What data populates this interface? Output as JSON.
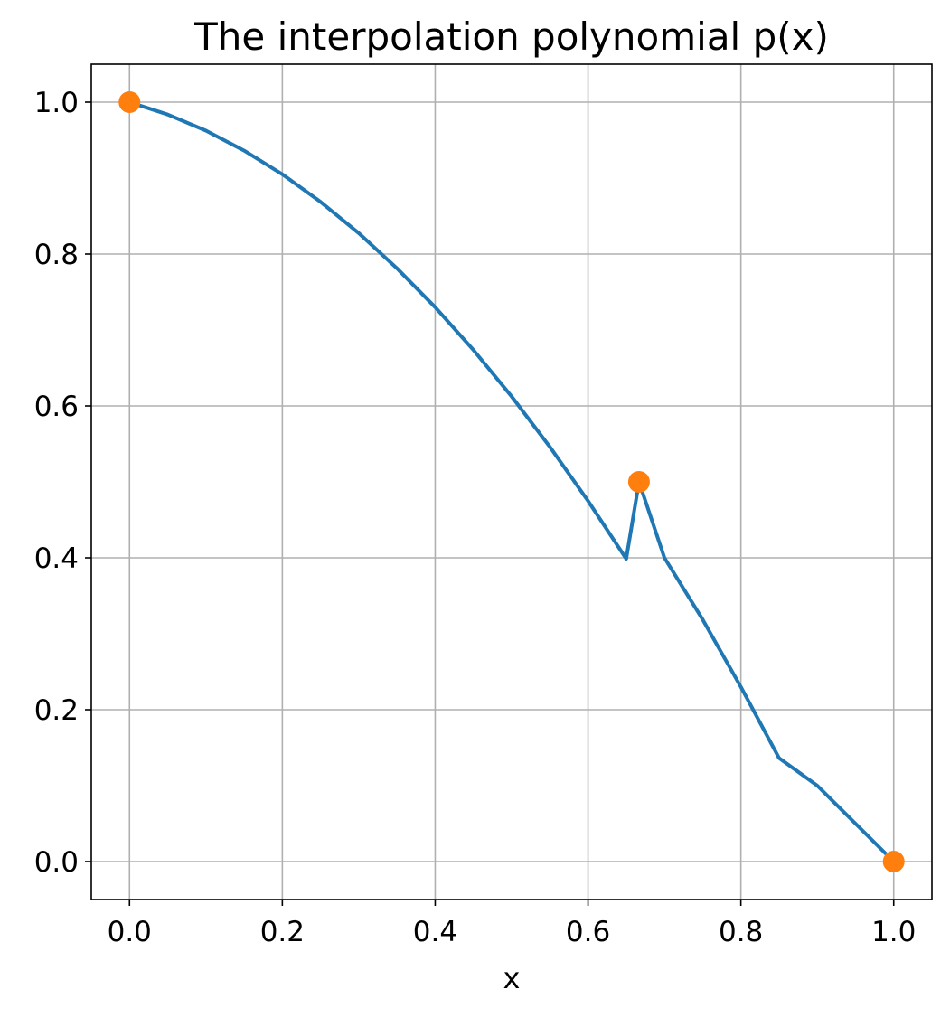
{
  "chart_data": {
    "type": "line",
    "title": "The interpolation polynomial p(x)",
    "xlabel": "x",
    "ylabel": "",
    "xlim": [
      -0.05,
      1.05
    ],
    "ylim": [
      -0.05,
      1.05
    ],
    "xticks": [
      0.0,
      0.2,
      0.4,
      0.6,
      0.8,
      1.0
    ],
    "xtick_labels": [
      "0.0",
      "0.2",
      "0.4",
      "0.6",
      "0.8",
      "1.0"
    ],
    "yticks": [
      0.0,
      0.2,
      0.4,
      0.6,
      0.8,
      1.0
    ],
    "ytick_labels": [
      "0.0",
      "0.2",
      "0.4",
      "0.6",
      "0.8",
      "1.0"
    ],
    "grid": true,
    "series": [
      {
        "kind": "line",
        "color": "#1f77b4",
        "x": [
          0.0,
          0.05,
          0.1,
          0.15,
          0.2,
          0.25,
          0.3,
          0.35,
          0.4,
          0.45,
          0.5,
          0.55,
          0.6,
          0.65,
          0.6667,
          0.7,
          0.75,
          0.8,
          0.85,
          0.9,
          0.95,
          1.0
        ],
        "y": [
          1.0,
          0.9837,
          0.9625,
          0.9362,
          0.905,
          0.8687,
          0.8275,
          0.7812,
          0.73,
          0.6737,
          0.6125,
          0.5462,
          0.475,
          0.3987,
          0.5,
          0.4,
          0.3188,
          0.23,
          0.1363,
          0.1,
          0.05,
          0.0
        ]
      },
      {
        "kind": "markers",
        "color": "#ff7f0e",
        "x": [
          0.0,
          0.6667,
          1.0
        ],
        "y": [
          1.0,
          0.5,
          0.0
        ]
      }
    ]
  }
}
